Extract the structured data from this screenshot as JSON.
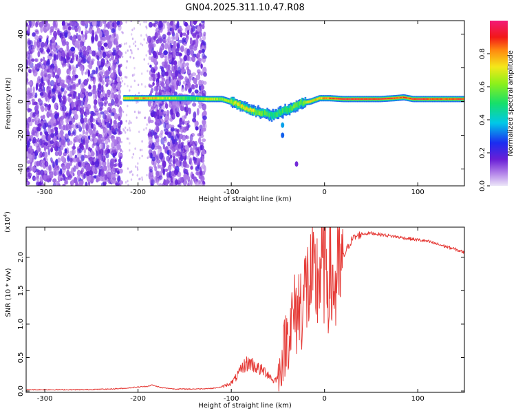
{
  "title": "GN04.2025.311.10.47.R08",
  "chart_data": [
    {
      "type": "heatmap",
      "panel": "top",
      "xlabel": "Height of straight line (km)",
      "ylabel": "Frequency (Hz)",
      "xlim": [
        -320,
        150
      ],
      "ylim": [
        -50,
        48
      ],
      "xticks": [
        -300,
        -200,
        -100,
        0,
        100
      ],
      "xtick_labels": [
        "-300",
        "-200",
        "-100",
        "0",
        "100"
      ],
      "yticks": [
        -40,
        -20,
        0,
        20,
        40
      ],
      "ytick_labels": [
        "-40",
        "-20",
        "0",
        "20",
        "40"
      ],
      "colorbar": {
        "label": "Normalized spectral amplitude",
        "range": [
          0,
          1
        ],
        "ticks": [
          0.0,
          0.2,
          0.4,
          0.6,
          0.8
        ],
        "tick_labels": [
          "0.0",
          "0.2",
          "0.4",
          "0.6",
          "0.8"
        ]
      },
      "noise_regions_km": [
        [
          -320,
          -218
        ],
        [
          -188,
          -128
        ]
      ],
      "signal_ridge": {
        "x": [
          -215,
          -190,
          -165,
          -145,
          -125,
          -110,
          -95,
          -80,
          -65,
          -55,
          -45,
          -35,
          -25,
          -15,
          -5,
          5,
          20,
          40,
          60,
          75,
          85,
          95,
          110,
          130,
          150
        ],
        "freq": [
          2,
          2,
          2,
          2,
          1.5,
          1.5,
          -1,
          -5,
          -7,
          -8,
          -6,
          -4,
          -1,
          0,
          2,
          2,
          1.5,
          1.5,
          1.5,
          2,
          2.5,
          1.5,
          1.5,
          1.5,
          1.5
        ],
        "amplitude": [
          0.7,
          0.8,
          0.65,
          0.5,
          0.7,
          0.6,
          0.65,
          0.75,
          0.55,
          0.5,
          0.5,
          0.55,
          0.6,
          0.7,
          0.75,
          0.85,
          0.95,
          0.95,
          0.95,
          0.9,
          0.85,
          0.95,
          0.9,
          0.9,
          0.9
        ]
      }
    },
    {
      "type": "line",
      "panel": "bottom",
      "xlabel": "Height of straight line (km)",
      "ylabel": "SNR (10 * v/v)",
      "y_multiplier": "(x10",
      "y_multiplier_exp": "4",
      "y_multiplier_close": ")",
      "xlim": [
        -320,
        150
      ],
      "ylim": [
        -0.02,
        2.45
      ],
      "xticks": [
        -300,
        -200,
        -100,
        0,
        100
      ],
      "xtick_labels": [
        "-300",
        "-200",
        "-100",
        "0",
        "100"
      ],
      "yticks": [
        0.0,
        0.5,
        1.0,
        1.5,
        2.0
      ],
      "ytick_labels": [
        "0.0",
        "0.5",
        "1.0",
        "1.5",
        "2.0"
      ],
      "series": [
        {
          "name": "SNR",
          "color": "#e53935",
          "x": [
            -320,
            -290,
            -260,
            -230,
            -215,
            -200,
            -190,
            -185,
            -175,
            -160,
            -140,
            -120,
            -110,
            -100,
            -95,
            -90,
            -85,
            -80,
            -75,
            -70,
            -65,
            -60,
            -55,
            -50,
            -45,
            -40,
            -35,
            -30,
            -25,
            -20,
            -15,
            -10,
            -5,
            0,
            5,
            10,
            15,
            20,
            25,
            30,
            40,
            50,
            60,
            70,
            80,
            90,
            100,
            110,
            120,
            130,
            140,
            150
          ],
          "y": [
            0.02,
            0.02,
            0.02,
            0.03,
            0.04,
            0.06,
            0.07,
            0.09,
            0.05,
            0.03,
            0.03,
            0.04,
            0.06,
            0.12,
            0.2,
            0.3,
            0.4,
            0.42,
            0.38,
            0.32,
            0.3,
            0.25,
            0.15,
            0.2,
            0.55,
            0.9,
            1.1,
            1.25,
            1.4,
            1.6,
            1.7,
            1.65,
            1.9,
            2.05,
            1.85,
            1.6,
            1.75,
            2.0,
            2.15,
            2.28,
            2.35,
            2.36,
            2.34,
            2.32,
            2.3,
            2.28,
            2.26,
            2.24,
            2.2,
            2.16,
            2.12,
            2.07
          ]
        }
      ]
    }
  ]
}
